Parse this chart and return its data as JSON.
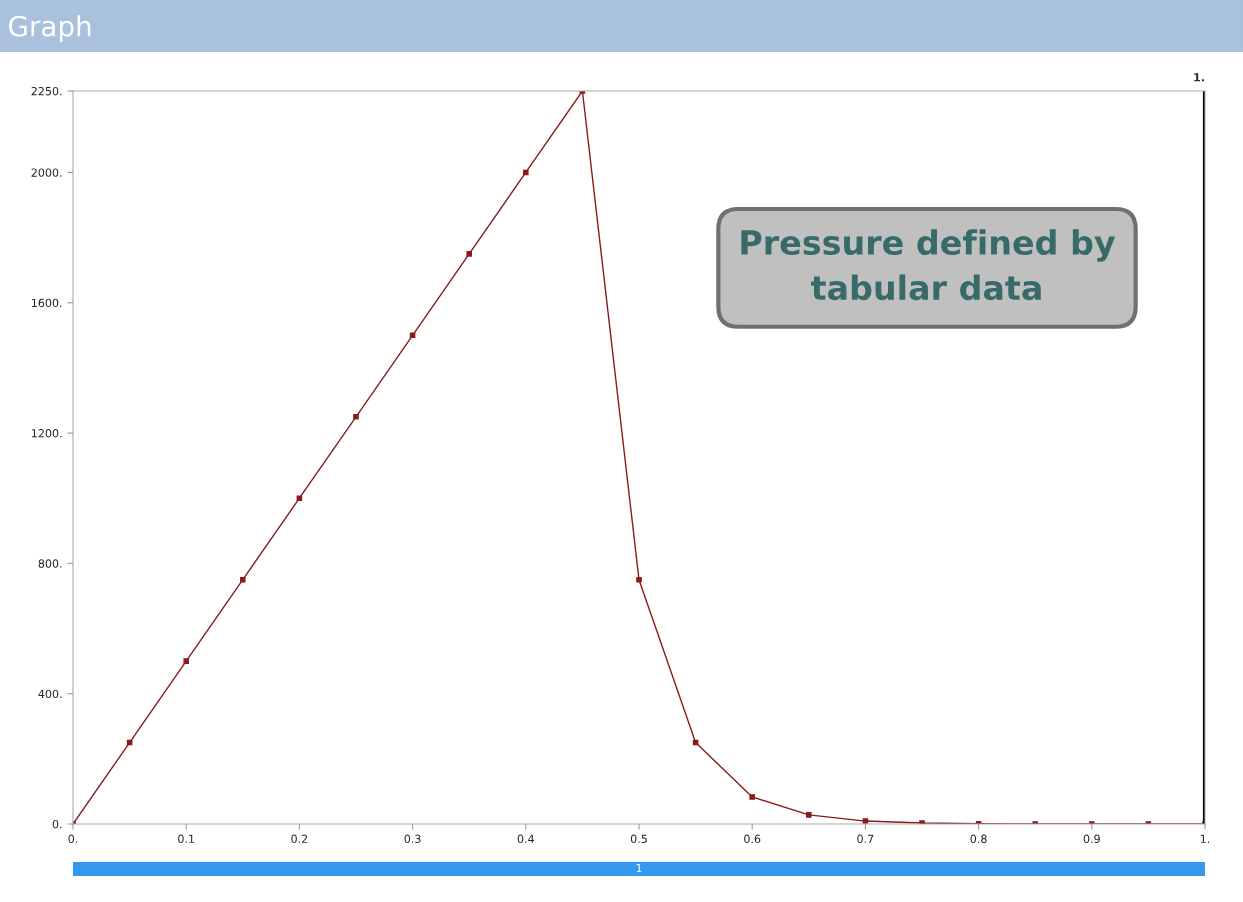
{
  "chart_data": {
    "type": "line",
    "title": "Graph",
    "x": [
      0,
      0.05,
      0.1,
      0.15,
      0.2,
      0.25,
      0.3,
      0.35,
      0.4,
      0.45,
      0.5,
      0.55,
      0.6,
      0.65,
      0.7,
      0.75,
      0.8,
      0.85,
      0.9,
      0.95,
      1
    ],
    "series": [
      {
        "color": "#8b1a1a",
        "values": [
          0,
          250,
          500,
          750,
          1000,
          1250,
          1500,
          1750,
          2000,
          2250,
          750,
          250,
          83,
          28,
          9,
          3,
          1,
          0,
          0,
          0,
          0
        ]
      }
    ],
    "xlim": [
      0,
      1
    ],
    "ylim": [
      0,
      2250
    ],
    "xticks": [
      {
        "value": 0,
        "label": "0."
      },
      0.1,
      0.2,
      0.3,
      0.4,
      0.5,
      0.6,
      0.7,
      0.8,
      0.9,
      {
        "value": 1,
        "label": "1."
      }
    ],
    "yticks": [
      {
        "value": 0,
        "label": "0."
      },
      {
        "value": 400,
        "label": "400."
      },
      {
        "value": 800,
        "label": "800."
      },
      {
        "value": 1200,
        "label": "1200."
      },
      {
        "value": 1600,
        "label": "1600."
      },
      {
        "value": 2000,
        "label": "2000."
      },
      {
        "value": 2250,
        "label": "2250."
      }
    ],
    "ref_lines": [
      {
        "axis": "x",
        "value": 1,
        "label": "1.",
        "color": "#000000"
      }
    ],
    "annotations": [
      "Pressure defined by tabular data",
      "1"
    ],
    "marker": "square",
    "line_style": "solid",
    "grid": false,
    "legend": false
  }
}
